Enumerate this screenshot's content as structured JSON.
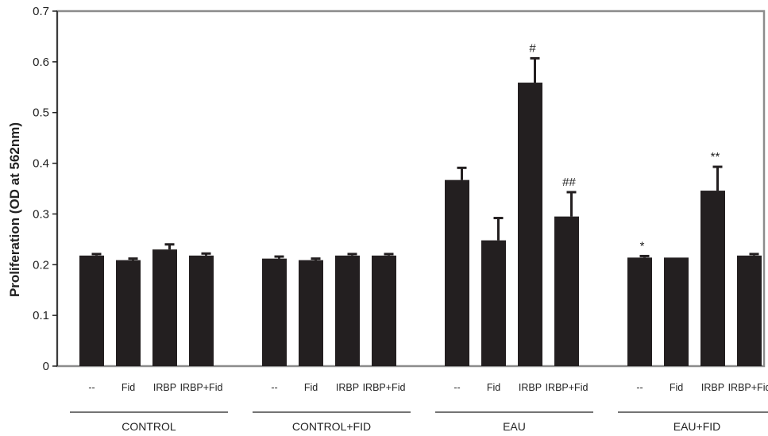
{
  "chart_data": {
    "type": "bar",
    "ylabel": "Proliferation (OD at 562nm)",
    "xlabel": "",
    "title": "",
    "ylim": [
      0,
      0.7
    ],
    "yticks": [
      "0",
      "0.1",
      "0.2",
      "0.3",
      "0.4",
      "0.5",
      "0.6",
      "0.7"
    ],
    "grid": false,
    "bar_color": "#231f20",
    "groups": [
      {
        "name": "CONTROL",
        "categories": [
          "--",
          "Fid",
          "IRBP",
          "IRBP+Fid"
        ],
        "values": [
          0.218,
          0.209,
          0.23,
          0.218
        ],
        "errors": [
          0.003,
          0.003,
          0.01,
          0.004
        ],
        "annotations": [
          "",
          "",
          "",
          ""
        ]
      },
      {
        "name": "CONTROL+FID",
        "categories": [
          "--",
          "Fid",
          "IRBP",
          "IRBP+Fid"
        ],
        "values": [
          0.212,
          0.209,
          0.218,
          0.218
        ],
        "errors": [
          0.004,
          0.003,
          0.003,
          0.003
        ],
        "annotations": [
          "",
          "",
          "",
          ""
        ]
      },
      {
        "name": "EAU",
        "categories": [
          "--",
          "Fid",
          "IRBP",
          "IRBP+Fid"
        ],
        "values": [
          0.367,
          0.248,
          0.559,
          0.295
        ],
        "errors": [
          0.024,
          0.044,
          0.048,
          0.048
        ],
        "annotations": [
          "",
          "",
          "#",
          "##"
        ]
      },
      {
        "name": "EAU+FID",
        "categories": [
          "--",
          "Fid",
          "IRBP",
          "IRBP+Fid"
        ],
        "values": [
          0.214,
          0.214,
          0.346,
          0.218
        ],
        "errors": [
          0.003,
          0.0,
          0.047,
          0.003
        ],
        "annotations": [
          "*",
          "",
          "**",
          ""
        ]
      }
    ]
  }
}
